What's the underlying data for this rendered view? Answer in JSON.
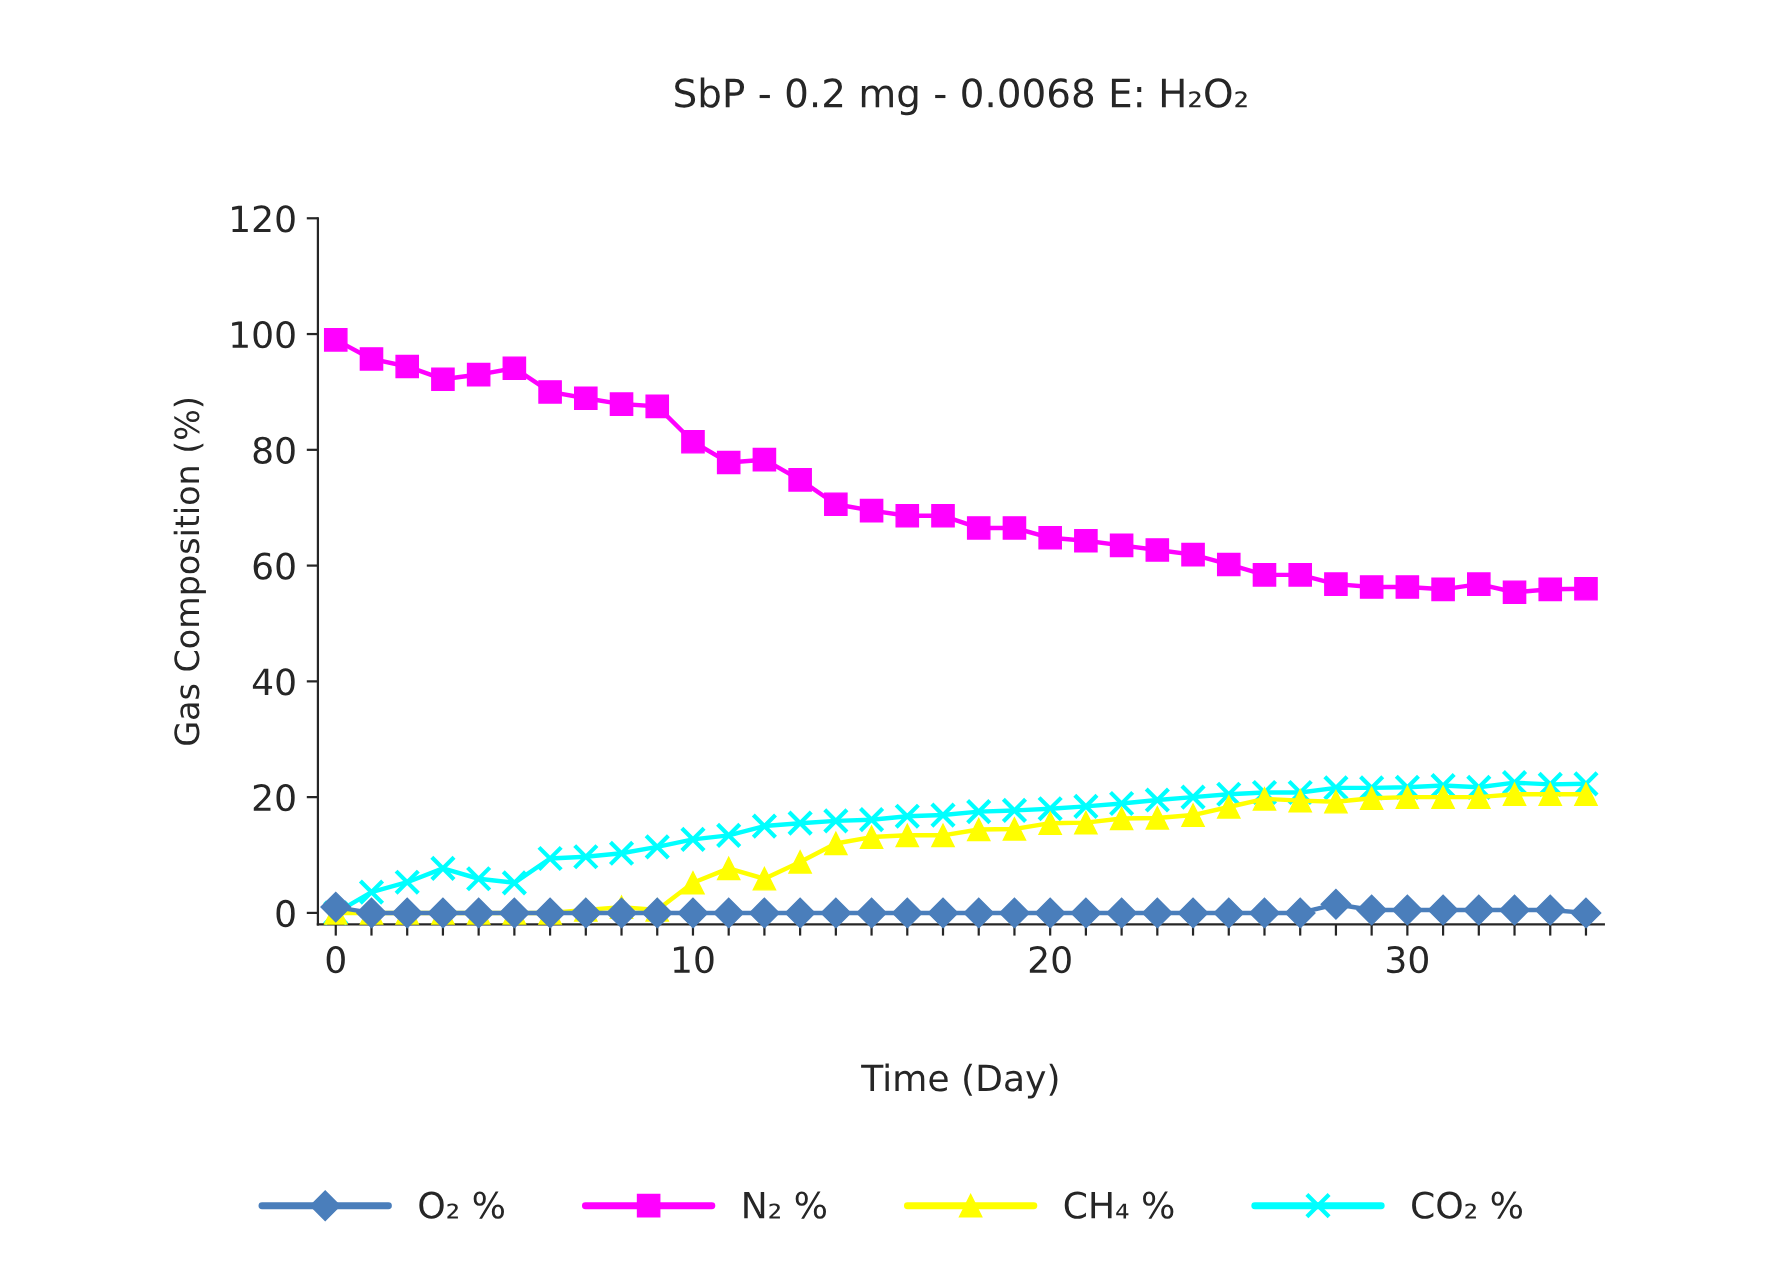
{
  "chart_data": {
    "type": "line",
    "title": "SbP - 0.2 mg - 0.0068 E: H₂O₂",
    "xlabel": "Time (Day)",
    "ylabel": "Gas Composition (%)",
    "x": [
      0,
      1,
      2,
      3,
      4,
      5,
      6,
      7,
      8,
      9,
      10,
      11,
      12,
      13,
      14,
      15,
      16,
      17,
      18,
      19,
      20,
      21,
      22,
      23,
      24,
      25,
      26,
      27,
      28,
      29,
      30,
      31,
      32,
      33,
      34,
      35
    ],
    "xlim": [
      -0.5,
      35.5
    ],
    "xticks": [
      0,
      {
        "value": 1,
        "label": null
      },
      {
        "value": 2,
        "label": null
      },
      {
        "value": 3,
        "label": null
      },
      {
        "value": 4,
        "label": null
      },
      {
        "value": 5,
        "label": null
      },
      {
        "value": 6,
        "label": null
      },
      {
        "value": 7,
        "label": null
      },
      {
        "value": 8,
        "label": null
      },
      {
        "value": 9,
        "label": null
      },
      10,
      {
        "value": 11,
        "label": null
      },
      {
        "value": 12,
        "label": null
      },
      {
        "value": 13,
        "label": null
      },
      {
        "value": 14,
        "label": null
      },
      {
        "value": 15,
        "label": null
      },
      {
        "value": 16,
        "label": null
      },
      {
        "value": 17,
        "label": null
      },
      {
        "value": 18,
        "label": null
      },
      {
        "value": 19,
        "label": null
      },
      20,
      {
        "value": 21,
        "label": null
      },
      {
        "value": 22,
        "label": null
      },
      {
        "value": 23,
        "label": null
      },
      {
        "value": 24,
        "label": null
      },
      {
        "value": 25,
        "label": null
      },
      {
        "value": 26,
        "label": null
      },
      {
        "value": 27,
        "label": null
      },
      {
        "value": 28,
        "label": null
      },
      {
        "value": 29,
        "label": null
      },
      30,
      {
        "value": 31,
        "label": null
      },
      {
        "value": 32,
        "label": null
      },
      {
        "value": 33,
        "label": null
      },
      {
        "value": 34,
        "label": null
      },
      {
        "value": 35,
        "label": null
      }
    ],
    "ylim": [
      -2,
      120
    ],
    "yticks": [
      0,
      20,
      40,
      60,
      80,
      100,
      120
    ],
    "grid": false,
    "legend": "bottom",
    "line_style": "solid",
    "series": [
      {
        "name": "O₂ %",
        "color": "#4a7ebb",
        "marker": "diamond",
        "values": [
          1,
          0,
          0,
          0,
          0,
          0,
          0,
          0,
          0,
          0,
          0,
          0,
          0,
          0,
          0,
          0,
          0,
          0,
          0,
          0,
          0,
          0,
          0,
          0,
          0,
          0,
          0,
          0,
          1.5,
          0.5,
          0.5,
          0.5,
          0.5,
          0.5,
          0.5,
          0
        ]
      },
      {
        "name": "N₂ %",
        "color": "#ff00ff",
        "marker": "square",
        "values": [
          99,
          95.7,
          94.4,
          92.2,
          93,
          94.1,
          90,
          88.9,
          87.9,
          87.5,
          81.4,
          77.8,
          78.3,
          74.8,
          70.6,
          69.5,
          68.6,
          68.6,
          66.5,
          66.5,
          64.8,
          64.3,
          63.5,
          62.7,
          61.9,
          60.2,
          58.4,
          58.4,
          56.8,
          56.3,
          56.3,
          55.9,
          56.8,
          55.4,
          55.9,
          56
        ]
      },
      {
        "name": "CH₄ %",
        "color": "#ffff00",
        "marker": "triangle",
        "values": [
          0,
          0,
          0,
          0,
          0,
          0,
          0,
          0.5,
          1,
          0.5,
          5.2,
          7.7,
          5.9,
          8.8,
          12,
          13.1,
          13.4,
          13.4,
          14.4,
          14.5,
          15.5,
          15.6,
          16.3,
          16.4,
          16.9,
          18.3,
          19.7,
          19.4,
          19.2,
          19.8,
          20,
          20,
          20,
          20.5,
          20.5,
          20.5
        ]
      },
      {
        "name": "CO₂ %",
        "color": "#00ffff",
        "marker": "cross",
        "values": [
          0,
          3.6,
          5.3,
          7.7,
          5.9,
          5.2,
          9.4,
          9.7,
          10.3,
          11.4,
          12.7,
          13.4,
          15,
          15.5,
          15.9,
          16.1,
          16.7,
          16.9,
          17.5,
          17.7,
          18,
          18.4,
          18.9,
          19.5,
          20,
          20.5,
          20.8,
          20.8,
          21.6,
          21.6,
          21.7,
          22,
          21.7,
          22.5,
          22.2,
          22.3
        ]
      }
    ]
  }
}
